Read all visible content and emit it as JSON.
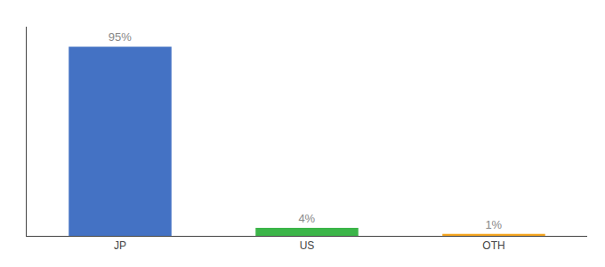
{
  "chart_data": {
    "type": "bar",
    "categories": [
      "JP",
      "US",
      "OTH"
    ],
    "values": [
      95,
      4,
      1
    ],
    "value_labels": [
      "95%",
      "4%",
      "1%"
    ],
    "colors": [
      "#4472C4",
      "#3CB549",
      "#F5A623"
    ],
    "ylim": [
      0,
      105
    ],
    "yticks": [],
    "tick_labels": "x",
    "data_labels": true,
    "grid": false
  }
}
